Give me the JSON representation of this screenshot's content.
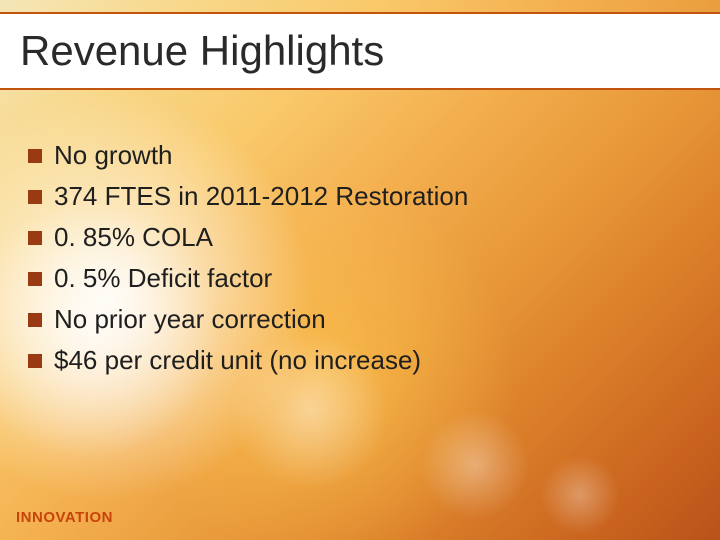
{
  "slide": {
    "title": "Revenue Highlights",
    "title_fontsize": 42,
    "title_color": "#2a2a2a",
    "rule_color": "#c2550e",
    "bullets": [
      "No growth",
      "374 FTES in 2011-2012 Restoration",
      "0. 85% COLA",
      "0. 5% Deficit factor",
      "No prior year correction",
      "$46 per credit unit (no increase)"
    ],
    "bullet_fontsize": 26,
    "bullet_text_color": "#1f1f1f",
    "bullet_marker_color": "#9a3a12",
    "footer_logo_text": "INNOVATION",
    "footer_logo_color": "#c8430a",
    "footer_logo_fontsize": 15,
    "footer_logo_weight": "bold",
    "background_gradient_colors": [
      "#f5e6b8",
      "#f8d88a",
      "#f9c96a",
      "#f4b050",
      "#e99a3a",
      "#db7f2a",
      "#c9631e",
      "#b8521a"
    ]
  }
}
